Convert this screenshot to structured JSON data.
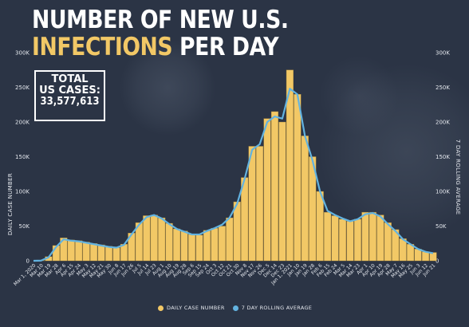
{
  "title": {
    "line1": "NUMBER OF NEW U.S.",
    "line2_highlight": "INFECTIONS",
    "line2_rest": "PER DAY"
  },
  "total": {
    "label_line1": "TOTAL",
    "label_line2": "US CASES:",
    "value": "33,577,613"
  },
  "colors": {
    "background": "#2b3445",
    "bars": "#f2c866",
    "bar_edge": "#a8873a",
    "line": "#63b3e0",
    "highlight": "#f2c866"
  },
  "legend": {
    "bars_label": "DAILY CASE NUMBER",
    "line_label": "7 DAY ROLLING AVERAGE"
  },
  "chart_data": {
    "type": "bar",
    "title": "NUMBER OF NEW U.S. INFECTIONS PER DAY",
    "ylabel": "DAILY CASE NUMBER",
    "ylabel_right": "7 DAY ROLLING AVERAGE",
    "ylim": [
      0,
      300000
    ],
    "yticks": [
      "0",
      "50K",
      "100K",
      "150K",
      "200K",
      "250K",
      "300K"
    ],
    "ytick_values": [
      0,
      50000,
      100000,
      150000,
      200000,
      250000,
      300000
    ],
    "grid": false,
    "legend_position": "bottom",
    "xtick_labels": [
      "Mar 1, 2020",
      "Mar 10",
      "Mar 19",
      "Mar 28",
      "Apr 6",
      "Apr 15",
      "Apr 24",
      "May 3",
      "May 12",
      "May 21",
      "May 30",
      "Jun 8",
      "Jun 17",
      "Jun 26",
      "Jul 5",
      "Jul 14",
      "Jul 23",
      "Aug 1",
      "Aug 10",
      "Aug 19",
      "Aug 28",
      "Sep 6",
      "Sep 15",
      "Sep 24",
      "Oct 3",
      "Oct 12",
      "Oct 21",
      "Oct 30",
      "Nov 8",
      "Nov 17",
      "Nov 26",
      "Dec 5",
      "Dec 14",
      "Dec 23",
      "Jan 1, 2021",
      "Jan 10",
      "Jan 19",
      "Jan 28",
      "Feb 6",
      "Feb 15",
      "Feb 24",
      "Mar 5",
      "Mar 14",
      "Mar 23",
      "Apr 1",
      "Apr 10",
      "Apr 19",
      "Apr 28",
      "May 7",
      "May 16",
      "May 25",
      "Jun 3",
      "Jun 12",
      "Jun 21"
    ],
    "series": [
      {
        "name": "DAILY CASE NUMBER",
        "kind": "bar",
        "x": [
          "2020-03-01",
          "2020-03-10",
          "2020-03-19",
          "2020-03-28",
          "2020-04-06",
          "2020-04-15",
          "2020-04-24",
          "2020-05-03",
          "2020-05-12",
          "2020-05-21",
          "2020-05-30",
          "2020-06-08",
          "2020-06-17",
          "2020-06-26",
          "2020-07-05",
          "2020-07-14",
          "2020-07-23",
          "2020-08-01",
          "2020-08-10",
          "2020-08-19",
          "2020-08-28",
          "2020-09-06",
          "2020-09-15",
          "2020-09-24",
          "2020-10-03",
          "2020-10-12",
          "2020-10-21",
          "2020-10-30",
          "2020-11-08",
          "2020-11-17",
          "2020-11-26",
          "2020-12-05",
          "2020-12-14",
          "2020-12-23",
          "2021-01-01",
          "2021-01-10",
          "2021-01-19",
          "2021-01-28",
          "2021-02-06",
          "2021-02-15",
          "2021-02-24",
          "2021-03-05",
          "2021-03-14",
          "2021-03-23",
          "2021-04-01",
          "2021-04-10",
          "2021-04-19",
          "2021-04-28",
          "2021-05-07",
          "2021-05-16",
          "2021-05-25",
          "2021-06-03",
          "2021-06-12",
          "2021-06-21"
        ],
        "values": [
          0,
          500,
          6000,
          22000,
          33000,
          30000,
          29000,
          27000,
          25000,
          23000,
          21000,
          19000,
          24000,
          40000,
          55000,
          65000,
          66000,
          62000,
          54000,
          46000,
          43000,
          38000,
          37000,
          44000,
          47000,
          50000,
          62000,
          85000,
          120000,
          165000,
          165000,
          205000,
          215000,
          200000,
          275000,
          240000,
          180000,
          150000,
          100000,
          70000,
          65000,
          60000,
          57000,
          60000,
          70000,
          70000,
          66000,
          55000,
          45000,
          32000,
          24000,
          17000,
          13000,
          12000
        ]
      },
      {
        "name": "7 DAY ROLLING AVERAGE",
        "kind": "line",
        "x": [
          "2020-03-01",
          "2020-03-10",
          "2020-03-19",
          "2020-03-28",
          "2020-04-06",
          "2020-04-15",
          "2020-04-24",
          "2020-05-03",
          "2020-05-12",
          "2020-05-21",
          "2020-05-30",
          "2020-06-08",
          "2020-06-17",
          "2020-06-26",
          "2020-07-05",
          "2020-07-14",
          "2020-07-23",
          "2020-08-01",
          "2020-08-10",
          "2020-08-19",
          "2020-08-28",
          "2020-09-06",
          "2020-09-15",
          "2020-09-24",
          "2020-10-03",
          "2020-10-12",
          "2020-10-21",
          "2020-10-30",
          "2020-11-08",
          "2020-11-17",
          "2020-11-26",
          "2020-12-05",
          "2020-12-14",
          "2020-12-23",
          "2021-01-01",
          "2021-01-10",
          "2021-01-19",
          "2021-01-28",
          "2021-02-06",
          "2021-02-15",
          "2021-02-24",
          "2021-03-05",
          "2021-03-14",
          "2021-03-23",
          "2021-04-01",
          "2021-04-10",
          "2021-04-19",
          "2021-04-28",
          "2021-05-07",
          "2021-05-16",
          "2021-05-25",
          "2021-06-03",
          "2021-06-12",
          "2021-06-21"
        ],
        "values": [
          0,
          300,
          5000,
          20000,
          31000,
          29000,
          28000,
          26000,
          24000,
          22000,
          20000,
          19000,
          23000,
          38000,
          52000,
          63000,
          66000,
          61000,
          53000,
          46000,
          42000,
          38000,
          38000,
          43000,
          47000,
          52000,
          62000,
          82000,
          118000,
          160000,
          168000,
          200000,
          208000,
          205000,
          248000,
          240000,
          180000,
          145000,
          100000,
          72000,
          66000,
          61000,
          57000,
          60000,
          67000,
          69000,
          64000,
          53000,
          43000,
          31000,
          24000,
          17000,
          13000,
          11000
        ]
      }
    ]
  }
}
